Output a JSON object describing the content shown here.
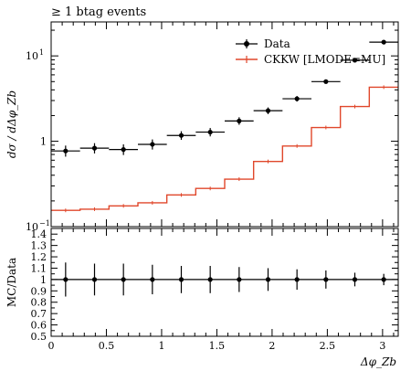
{
  "chart_data": {
    "type": "line",
    "title": "≥ 1 btag events",
    "xlabel": "Δφ_Zb",
    "ylabel": "dσ / dΔφ_Zb",
    "ratio_ylabel": "MC/Data",
    "xlim": [
      0,
      3.14159
    ],
    "ylim": [
      0.1,
      25
    ],
    "yscale": "log",
    "ratio_ylim": [
      0.5,
      1.45
    ],
    "legend_position": "top-right",
    "grid": false,
    "x_ticks": [
      "0",
      "0.5",
      "1",
      "1.5",
      "2",
      "2.5",
      "3"
    ],
    "y_ticks": [
      {
        "value": 0.1,
        "label": "10",
        "exp": "−1"
      },
      {
        "value": 1,
        "label": "1",
        "exp": ""
      },
      {
        "value": 10,
        "label": "10",
        "exp": "1"
      }
    ],
    "ratio_ticks": [
      "0.5",
      "0.6",
      "0.7",
      "0.8",
      "0.9",
      "1",
      "1.1",
      "1.2",
      "1.3",
      "1.4"
    ],
    "bin_edges": [
      0,
      0.2618,
      0.5236,
      0.7854,
      1.0472,
      1.309,
      1.5708,
      1.8326,
      2.0944,
      2.3562,
      2.618,
      2.8798,
      3.1416
    ],
    "series": [
      {
        "name": "Data",
        "color": "#000000",
        "style": "points",
        "values": [
          0.77,
          0.83,
          0.8,
          0.92,
          1.17,
          1.28,
          1.73,
          2.28,
          3.15,
          5.0,
          8.9,
          14.5
        ],
        "err_low": [
          0.66,
          0.72,
          0.69,
          0.8,
          1.04,
          1.14,
          1.56,
          2.08,
          2.92,
          4.72,
          8.5,
          13.9
        ],
        "err_high": [
          0.89,
          0.95,
          0.92,
          1.05,
          1.31,
          1.43,
          1.91,
          2.49,
          3.39,
          5.3,
          9.3,
          15.1
        ]
      },
      {
        "name": "CKKW [LMODE=MU]",
        "color": "#e0472b",
        "style": "histogram",
        "values": [
          0.155,
          0.16,
          0.175,
          0.19,
          0.235,
          0.28,
          0.36,
          0.58,
          0.88,
          1.45,
          2.55,
          4.3
        ]
      }
    ],
    "ratio": {
      "values": [
        1,
        1,
        1,
        1,
        1,
        1,
        1,
        1,
        1,
        1,
        1,
        1
      ],
      "err_low": [
        0.85,
        0.86,
        0.86,
        0.87,
        0.88,
        0.88,
        0.89,
        0.9,
        0.91,
        0.92,
        0.94,
        0.95
      ],
      "err_high": [
        1.15,
        1.14,
        1.14,
        1.13,
        1.12,
        1.12,
        1.11,
        1.1,
        1.09,
        1.08,
        1.06,
        1.05
      ]
    }
  }
}
